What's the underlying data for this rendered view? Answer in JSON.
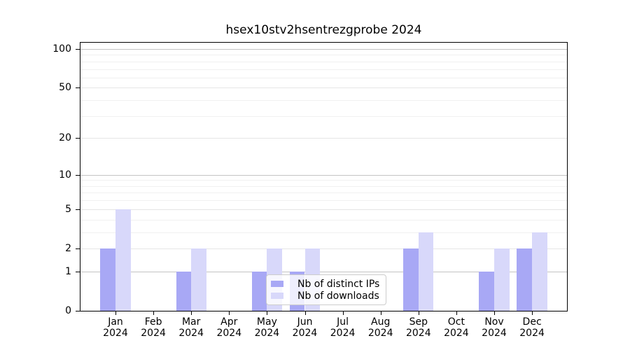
{
  "chart_data": {
    "type": "bar",
    "title": "hsex10stv2hsentrezgprobe 2024",
    "categories": [
      "Jan",
      "Feb",
      "Mar",
      "Apr",
      "May",
      "Jun",
      "Jul",
      "Aug",
      "Sep",
      "Oct",
      "Nov",
      "Dec"
    ],
    "year_label": "2024",
    "series": [
      {
        "name": "Nb of distinct IPs",
        "color": "#a8a8f5",
        "values": [
          2,
          0,
          1,
          0,
          1,
          1,
          0,
          0,
          2,
          0,
          1,
          2
        ]
      },
      {
        "name": "Nb of downloads",
        "color": "#d8d8fa",
        "values": [
          5,
          0,
          2,
          0,
          2,
          2,
          0,
          0,
          3,
          0,
          2,
          3
        ]
      }
    ],
    "yscale": "log10(value+1)",
    "ylim": [
      0,
      112
    ],
    "yticks": [
      100,
      50,
      20,
      10,
      5,
      2,
      1,
      0
    ],
    "minor_yticks": [
      90,
      80,
      70,
      60,
      40,
      30,
      9,
      8,
      7,
      6,
      4,
      3
    ],
    "grid": true,
    "legend_position": "lower center",
    "colors": {
      "axis": "#000000",
      "decade_gridline": "#c3c3c3",
      "major_gridline": "#e5e5e5",
      "minor_gridline": "#f0f0f0",
      "legend_border": "#cccccc"
    }
  }
}
